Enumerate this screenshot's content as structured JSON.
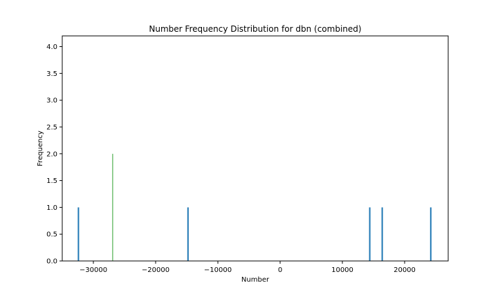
{
  "chart_data": {
    "type": "bar",
    "title": "Number Frequency Distribution for dbn (combined)",
    "xlabel": "Number",
    "ylabel": "Frequency",
    "xlim": [
      -35000,
      27000
    ],
    "ylim": [
      0.0,
      4.2
    ],
    "x_ticks": [
      -30000,
      -20000,
      -10000,
      0,
      10000,
      20000
    ],
    "x_tick_labels": [
      "−30000",
      "−20000",
      "−10000",
      "0",
      "10000",
      "20000"
    ],
    "y_ticks": [
      0.0,
      0.5,
      1.0,
      1.5,
      2.0,
      2.5,
      3.0,
      3.5,
      4.0
    ],
    "y_tick_labels": [
      "0.0",
      "0.5",
      "1.0",
      "1.5",
      "2.0",
      "2.5",
      "3.0",
      "3.5",
      "4.0"
    ],
    "grid": false,
    "legend": "none",
    "series": [
      {
        "x": [
          -32400,
          -26900,
          -14800,
          14400,
          16400,
          24200
        ],
        "values": [
          1,
          2,
          1,
          1,
          1,
          1
        ],
        "colors": [
          "#1f77b4",
          "#2ca02c",
          "#1f77b4",
          "#1f77b4",
          "#1f77b4",
          "#1f77b4"
        ]
      }
    ]
  }
}
